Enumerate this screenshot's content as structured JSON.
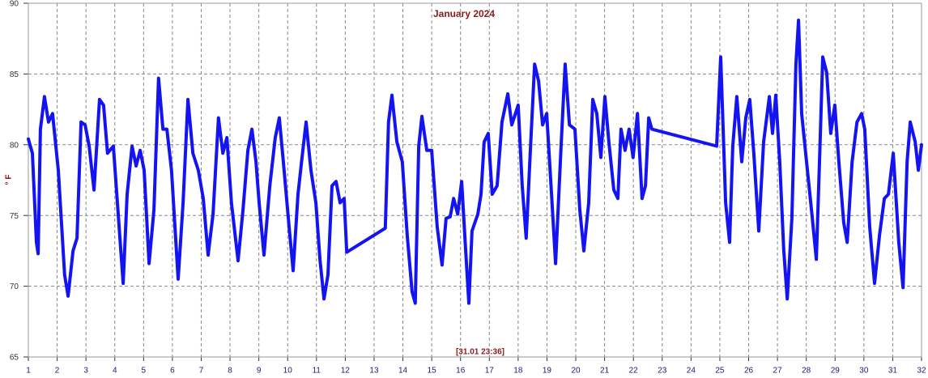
{
  "chart_data": {
    "type": "line",
    "title": "January 2024",
    "y_label": "° F",
    "annotation": "[31.01 23:36]",
    "color": "#1414f0",
    "grid": true,
    "xlim": [
      1,
      32
    ],
    "ylim": [
      65,
      90
    ],
    "xticks": [
      1,
      2,
      3,
      4,
      5,
      6,
      7,
      8,
      9,
      10,
      11,
      12,
      13,
      14,
      15,
      16,
      17,
      18,
      19,
      20,
      21,
      22,
      23,
      24,
      25,
      26,
      27,
      28,
      29,
      30,
      31,
      32
    ],
    "yticks": [
      65,
      70,
      75,
      80,
      85,
      90
    ],
    "x": [
      1.0,
      1.14,
      1.28,
      1.34,
      1.42,
      1.56,
      1.7,
      1.84,
      2.04,
      2.26,
      2.38,
      2.55,
      2.69,
      2.83,
      2.97,
      3.11,
      3.28,
      3.47,
      3.61,
      3.75,
      3.95,
      4.15,
      4.29,
      4.43,
      4.6,
      4.74,
      4.88,
      5.02,
      5.19,
      5.36,
      5.52,
      5.67,
      5.81,
      5.97,
      6.2,
      6.37,
      6.54,
      6.71,
      6.9,
      7.07,
      7.24,
      7.41,
      7.6,
      7.75,
      7.89,
      8.05,
      8.28,
      8.45,
      8.62,
      8.76,
      8.9,
      9.01,
      9.18,
      9.38,
      9.57,
      9.71,
      9.85,
      10.05,
      10.19,
      10.36,
      10.5,
      10.64,
      10.81,
      10.98,
      11.12,
      11.26,
      11.4,
      11.54,
      11.68,
      11.82,
      11.96,
      12.05,
      13.39,
      13.5,
      13.62,
      13.79,
      13.98,
      14.15,
      14.32,
      14.43,
      14.55,
      14.66,
      14.83,
      15.0,
      15.19,
      15.36,
      15.5,
      15.64,
      15.76,
      15.9,
      16.04,
      16.18,
      16.29,
      16.4,
      16.6,
      16.71,
      16.82,
      16.96,
      17.1,
      17.27,
      17.44,
      17.64,
      17.78,
      18.0,
      18.14,
      18.28,
      18.43,
      18.57,
      18.71,
      18.85,
      18.99,
      19.16,
      19.3,
      19.49,
      19.63,
      19.78,
      19.97,
      20.14,
      20.28,
      20.45,
      20.59,
      20.73,
      20.87,
      21.01,
      21.15,
      21.32,
      21.46,
      21.57,
      21.71,
      21.85,
      21.99,
      22.14,
      22.3,
      22.42,
      22.53,
      22.64,
      24.89,
      25.03,
      25.2,
      25.34,
      25.45,
      25.59,
      25.76,
      25.9,
      26.04,
      26.18,
      26.35,
      26.52,
      26.72,
      26.83,
      26.94,
      27.08,
      27.22,
      27.34,
      27.5,
      27.64,
      27.73,
      27.84,
      28.01,
      28.18,
      28.35,
      28.46,
      28.57,
      28.71,
      28.85,
      28.99,
      29.13,
      29.3,
      29.42,
      29.59,
      29.76,
      29.92,
      30.03,
      30.2,
      30.37,
      30.54,
      30.71,
      30.85,
      31.02,
      31.21,
      31.36,
      31.5,
      31.61,
      31.78,
      31.89,
      32.0
    ],
    "values": [
      80.4,
      79.4,
      73.1,
      72.3,
      81.1,
      83.4,
      81.6,
      82.2,
      78.2,
      70.8,
      69.3,
      72.5,
      73.4,
      81.6,
      81.4,
      79.9,
      76.8,
      83.2,
      82.8,
      79.4,
      79.9,
      74.2,
      70.2,
      76.5,
      79.9,
      78.5,
      79.6,
      78.2,
      71.6,
      75.4,
      84.7,
      81.1,
      81.1,
      78.2,
      70.5,
      75.9,
      83.2,
      79.4,
      78.2,
      76.2,
      72.2,
      75.1,
      81.9,
      79.4,
      80.5,
      75.9,
      71.8,
      75.4,
      79.6,
      81.1,
      78.8,
      75.9,
      72.2,
      77.1,
      80.5,
      81.9,
      78.8,
      74.2,
      71.1,
      76.5,
      79.1,
      81.6,
      78.2,
      75.9,
      71.9,
      69.1,
      70.8,
      77.1,
      77.4,
      75.9,
      76.2,
      72.4,
      74.1,
      81.6,
      83.5,
      80.2,
      78.8,
      73.6,
      69.6,
      68.8,
      79.9,
      82.0,
      79.6,
      79.6,
      74.2,
      71.5,
      74.8,
      74.9,
      76.2,
      75.1,
      77.4,
      72.5,
      68.8,
      73.9,
      75.1,
      76.5,
      80.2,
      80.8,
      76.5,
      77.1,
      81.6,
      83.6,
      81.4,
      82.8,
      77.1,
      73.4,
      79.9,
      85.7,
      84.5,
      81.4,
      82.2,
      76.5,
      71.6,
      79.9,
      85.7,
      81.4,
      81.1,
      75.4,
      72.5,
      75.9,
      83.2,
      82.2,
      79.1,
      83.4,
      80.2,
      76.8,
      76.2,
      81.1,
      79.6,
      81.1,
      79.1,
      82.2,
      76.2,
      77.1,
      81.9,
      81.1,
      79.9,
      86.2,
      75.9,
      73.1,
      79.9,
      83.4,
      78.8,
      81.9,
      83.2,
      79.4,
      73.9,
      80.2,
      83.4,
      80.8,
      83.5,
      78.8,
      72.5,
      69.1,
      74.8,
      85.7,
      88.8,
      82.2,
      78.8,
      75.4,
      71.9,
      78.8,
      86.2,
      85.1,
      80.8,
      82.8,
      78.8,
      74.5,
      73.1,
      78.8,
      81.6,
      82.2,
      81.1,
      74.2,
      70.2,
      73.6,
      76.2,
      76.5,
      79.4,
      73.1,
      69.9,
      78.8,
      81.6,
      80.2,
      78.2,
      80.0
    ]
  }
}
